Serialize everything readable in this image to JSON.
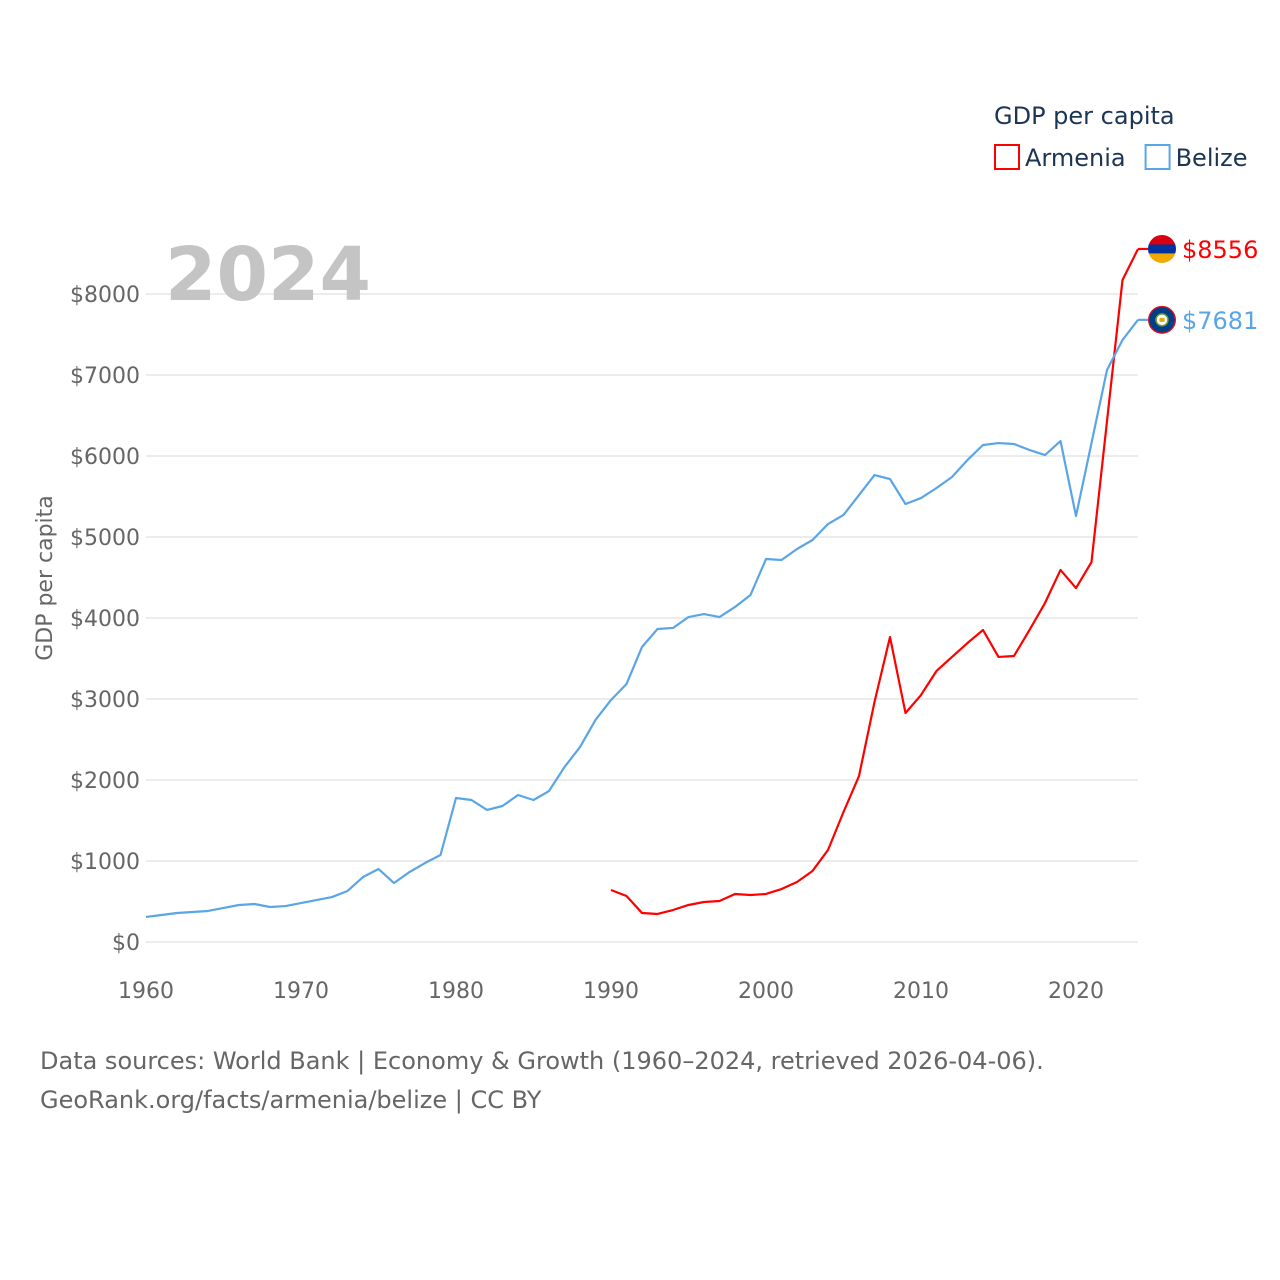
{
  "chart_data": {
    "type": "line",
    "title": "GDP per capita",
    "year_label": "2024",
    "ylabel": "GDP per capita",
    "xlabel": "",
    "xlim": [
      1960,
      2024
    ],
    "ylim": [
      0,
      8000
    ],
    "x_ticks": [
      "1960",
      "1970",
      "1980",
      "1990",
      "2000",
      "2010",
      "2020"
    ],
    "y_ticks": [
      "$0",
      "$1000",
      "$2000",
      "$3000",
      "$4000",
      "$5000",
      "$6000",
      "$7000",
      "$8000"
    ],
    "grid": true,
    "legend_position": "top-right",
    "series": [
      {
        "name": "Armenia",
        "color": "#ff0000",
        "end_label": "$8556",
        "start_year": 1990,
        "values": [
          642,
          568,
          358,
          346,
          395,
          457,
          494,
          506,
          593,
          580,
          593,
          654,
          741,
          877,
          1136,
          1605,
          2049,
          2963,
          3765,
          2827,
          3049,
          3346,
          3519,
          3691,
          3852,
          3519,
          3531,
          3852,
          4185,
          4593,
          4370,
          4691,
          6430,
          8173,
          8556
        ]
      },
      {
        "name": "Belize",
        "color": "#5aa5e6",
        "end_label": "$7681",
        "start_year": 1960,
        "values": [
          309,
          333,
          358,
          370,
          383,
          420,
          457,
          469,
          432,
          444,
          481,
          518,
          555,
          630,
          802,
          901,
          728,
          864,
          975,
          1074,
          1778,
          1753,
          1630,
          1679,
          1815,
          1753,
          1864,
          2160,
          2407,
          2741,
          2988,
          3185,
          3642,
          3864,
          3877,
          4012,
          4049,
          4012,
          4136,
          4284,
          4728,
          4716,
          4852,
          4963,
          5160,
          5272,
          5518,
          5765,
          5716,
          5407,
          5481,
          5605,
          5741,
          5951,
          6136,
          6160,
          6148,
          6074,
          6012,
          6185,
          5259,
          6160,
          7062,
          7432,
          7681
        ]
      }
    ]
  },
  "footer": {
    "line1": "Data sources: World Bank | Economy & Growth (1960–2024, retrieved 2026-04-06).",
    "line2": "GeoRank.org/facts/armenia/belize | CC BY"
  }
}
